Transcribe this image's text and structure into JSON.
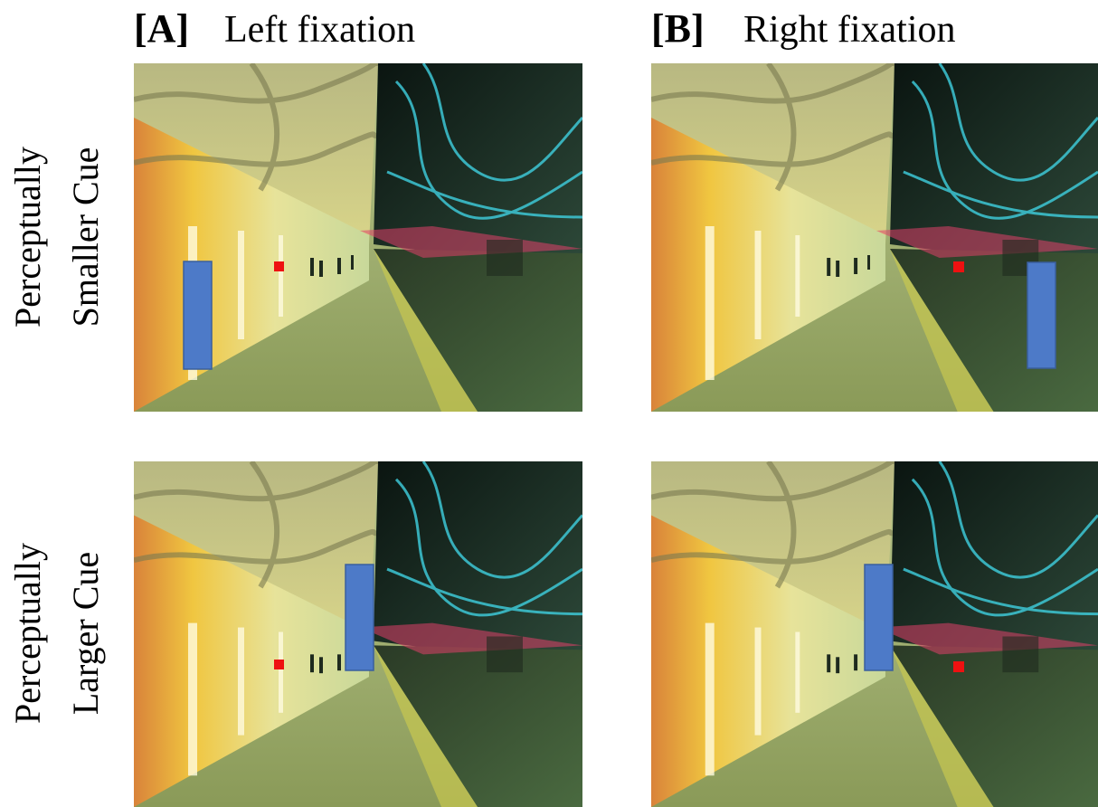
{
  "columns": [
    {
      "label": "[A]",
      "title": "Left fixation"
    },
    {
      "label": "[B]",
      "title": "Right fixation"
    }
  ],
  "rows": [
    {
      "line1": "Perceptually",
      "line2": "Smaller Cue"
    },
    {
      "line1": "Perceptually",
      "line2": "Larger Cue"
    }
  ]
}
